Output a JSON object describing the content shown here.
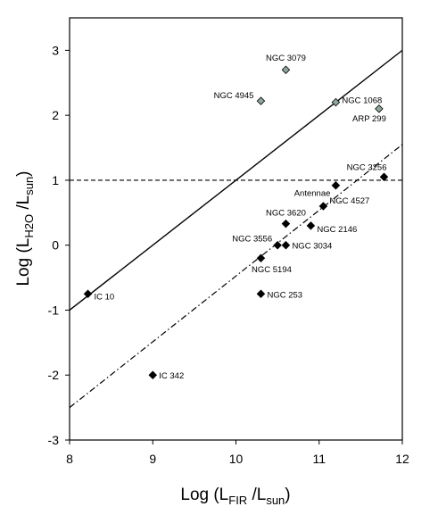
{
  "chart_data": {
    "type": "scatter",
    "xlim": [
      8,
      12
    ],
    "ylim": [
      -3,
      3.5
    ],
    "x_ticks": [
      "8",
      "9",
      "10",
      "11",
      "12"
    ],
    "y_ticks": [
      "-3",
      "-2",
      "-1",
      "0",
      "1",
      "2",
      "3"
    ],
    "xlabel": {
      "pre": "Log (L",
      "sub1": "FIR",
      "mid": " /L",
      "sub2": "sun",
      "post": ")"
    },
    "ylabel": {
      "pre": "Log (L",
      "sub1": "H2O",
      "mid": " /L",
      "sub2": "sun",
      "post": ")"
    },
    "grid": false,
    "series": [
      {
        "marker": "diamond",
        "color": "#000000",
        "points": [
          {
            "label": "IC 10",
            "x": 8.22,
            "y": -0.75
          },
          {
            "label": "IC 342",
            "x": 9.0,
            "y": -2.0
          },
          {
            "label": "NGC 253",
            "x": 10.3,
            "y": -0.75
          },
          {
            "label": "NGC 5194",
            "x": 10.3,
            "y": -0.2
          },
          {
            "label": "NGC 3556",
            "x": 10.5,
            "y": 0.0
          },
          {
            "label": "NGC 3034",
            "x": 10.6,
            "y": 0.0
          },
          {
            "label": "NGC 3620",
            "x": 10.6,
            "y": 0.33
          },
          {
            "label": "NGC 2146",
            "x": 10.9,
            "y": 0.3
          },
          {
            "label": "NGC 4527",
            "x": 11.05,
            "y": 0.6
          },
          {
            "label": "Antennae",
            "x": 11.2,
            "y": 0.92
          },
          {
            "label": "NGC 3256",
            "x": 11.78,
            "y": 1.05
          }
        ]
      },
      {
        "marker": "diamond",
        "color": "#8fa79a",
        "points": [
          {
            "label": "NGC 3079",
            "x": 10.6,
            "y": 2.7
          },
          {
            "label": "NGC 4945",
            "x": 10.3,
            "y": 2.22
          },
          {
            "label": "NGC 1068",
            "x": 11.2,
            "y": 2.2
          },
          {
            "label": "ARP 299",
            "x": 11.72,
            "y": 2.1
          }
        ]
      }
    ],
    "lines": [
      {
        "style": "solid",
        "x": [
          8,
          12
        ],
        "y": [
          -1,
          3
        ]
      },
      {
        "style": "dashed",
        "x": [
          8,
          12
        ],
        "y": [
          1,
          1
        ]
      },
      {
        "style": "dashdot",
        "x": [
          8,
          12
        ],
        "y": [
          -2.5,
          1.55
        ]
      }
    ]
  }
}
